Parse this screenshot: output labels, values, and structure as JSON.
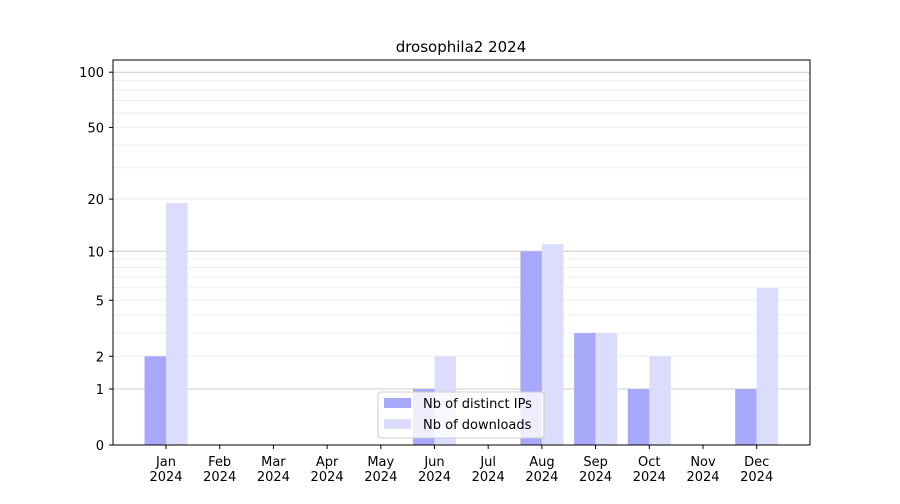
{
  "chart_data": {
    "type": "bar",
    "title": "drosophila2 2024",
    "xlabel": "",
    "ylabel": "",
    "yscale": "log(1+y)",
    "ylim": [
      0,
      116
    ],
    "yticks": [
      0,
      1,
      2,
      5,
      10,
      20,
      50,
      100
    ],
    "grid": true,
    "legend_position": "bottom-center",
    "categories": [
      "Jan\n2024",
      "Feb\n2024",
      "Mar\n2024",
      "Apr\n2024",
      "May\n2024",
      "Jun\n2024",
      "Jul\n2024",
      "Aug\n2024",
      "Sep\n2024",
      "Oct\n2024",
      "Nov\n2024",
      "Dec\n2024"
    ],
    "series": [
      {
        "name": "Nb of distinct IPs",
        "color": "#a8a8fb",
        "values": [
          2,
          0,
          0,
          0,
          0,
          1,
          0,
          10,
          3,
          1,
          0,
          1
        ]
      },
      {
        "name": "Nb of downloads",
        "color": "#dcdcfd",
        "values": [
          19,
          0,
          0,
          0,
          0,
          2,
          0,
          11,
          3,
          2,
          0,
          6
        ]
      }
    ]
  }
}
